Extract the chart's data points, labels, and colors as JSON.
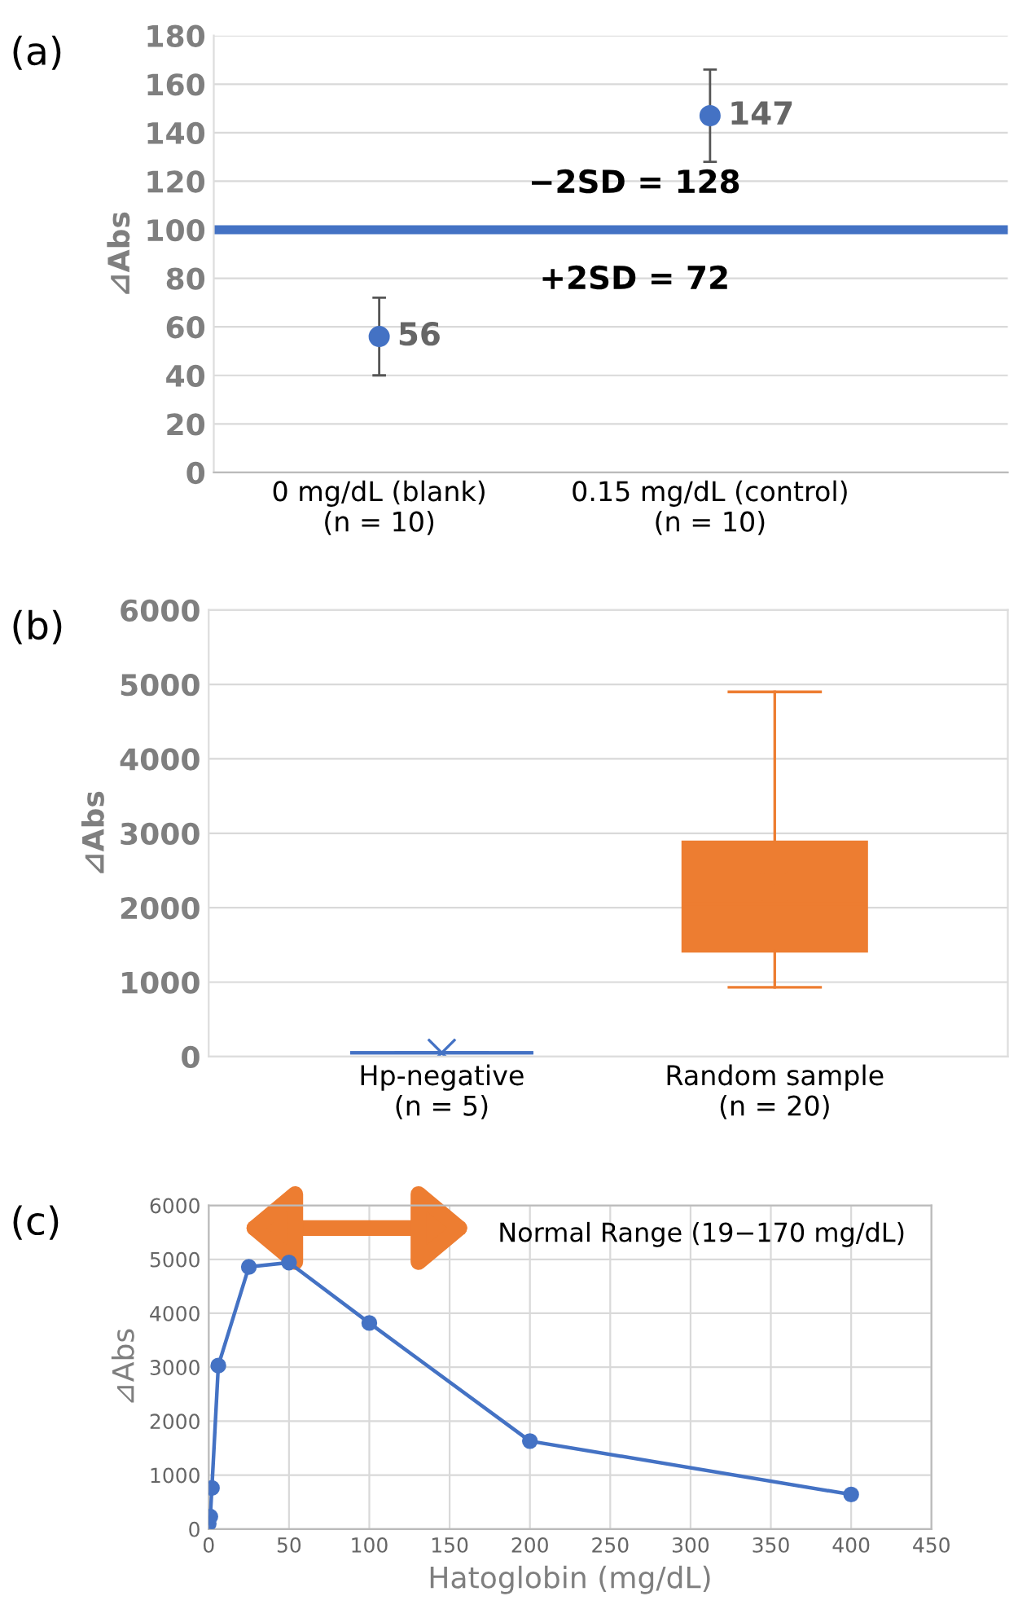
{
  "chart_data": [
    {
      "type": "scatter",
      "title": "(a)",
      "ylabel": "⊿Abs",
      "categories": [
        "0 mg/dL (blank)\n(n = 10)",
        "0.15 mg/dL (control)\n(n = 10)"
      ],
      "values": [
        56,
        147
      ],
      "errors": [
        [
          40,
          72
        ],
        [
          128,
          166
        ]
      ],
      "color": "#4472c4",
      "data_labels": true,
      "marker": "circle",
      "ylim": [
        0,
        180
      ],
      "yticks": [
        0,
        20,
        40,
        60,
        80,
        100,
        120,
        140,
        160,
        180
      ],
      "grid": "y",
      "ref_lines": [
        {
          "axis": "y",
          "value": 100,
          "color": "#4472c4"
        }
      ],
      "annotations": [
        "−2SD = 128",
        "+2SD = 72"
      ]
    },
    {
      "type": "box",
      "title": "(b)",
      "ylabel": "⊿Abs",
      "categories": [
        "Hp-negative\n(n = 5)",
        "Random sample\n(n = 20)"
      ],
      "series": [
        {
          "color": "#4472c4",
          "boxes": [
            {
              "low": 50,
              "q1": 50,
              "median": 50,
              "q3": 50,
              "high": 50,
              "mean": 50
            },
            null
          ]
        },
        {
          "color": "#ed7d31",
          "boxes": [
            null,
            {
              "low": 930,
              "q1": 1420,
              "median": 2050,
              "q3": 2880,
              "high": 4900,
              "mean": 2290
            }
          ]
        }
      ],
      "ylim": [
        0,
        6000
      ],
      "yticks": [
        0,
        1000,
        2000,
        3000,
        4000,
        5000,
        6000
      ],
      "grid": "y"
    },
    {
      "type": "line",
      "title": "(c)",
      "ylabel": "⊿Abs",
      "xlabel": "Hatoglobin (mg/dL)",
      "x": [
        0,
        1,
        2,
        6,
        25,
        50,
        100,
        200,
        400
      ],
      "values": [
        100,
        230,
        760,
        3030,
        4860,
        4940,
        3820,
        1630,
        640
      ],
      "color": "#4472c4",
      "marker": "circle",
      "xlim": [
        0,
        450
      ],
      "xticks": [
        0,
        50,
        100,
        150,
        200,
        250,
        300,
        350,
        400,
        450
      ],
      "ylim": [
        0,
        6000
      ],
      "yticks": [
        0,
        1000,
        2000,
        3000,
        4000,
        5000,
        6000
      ],
      "grid": true,
      "annotations": [
        "Normal Range (19−170 mg/dL)"
      ]
    }
  ]
}
